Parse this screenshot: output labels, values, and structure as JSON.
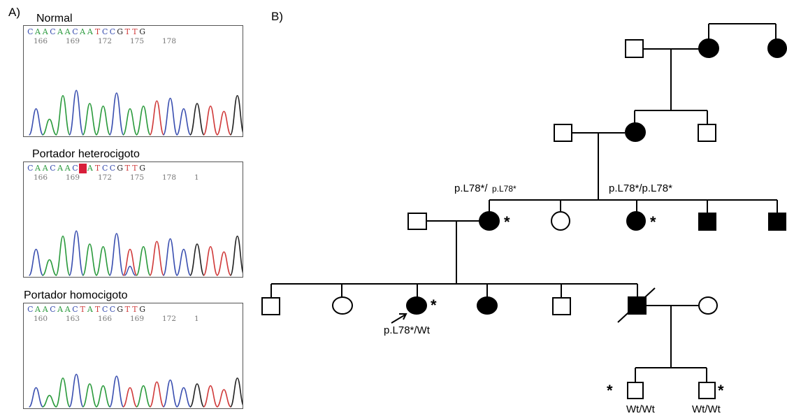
{
  "panel_a": {
    "label": "A)",
    "traces": [
      {
        "title": "Normal",
        "bases": [
          "C",
          "A",
          "A",
          "C",
          "A",
          "A",
          "C",
          "A",
          "A",
          "T",
          "C",
          "C",
          "G",
          "T",
          "T",
          "G"
        ],
        "numbers": [
          "166",
          "169",
          "172",
          "175",
          "178"
        ],
        "highlight_index": -1
      },
      {
        "title": "Portador heterocigoto",
        "bases": [
          "C",
          "A",
          "A",
          "C",
          "A",
          "A",
          "C",
          "",
          "A",
          "T",
          "C",
          "C",
          "G",
          "T",
          "T",
          "G"
        ],
        "numbers": [
          "166",
          "169",
          "172",
          "175",
          "178",
          "1"
        ],
        "highlight_index": 7
      },
      {
        "title": "Portador homocigoto",
        "bases": [
          "C",
          "A",
          "A",
          "C",
          "A",
          "A",
          "C",
          "T",
          "A",
          "T",
          "C",
          "C",
          "G",
          "T",
          "T",
          "G"
        ],
        "numbers": [
          "160",
          "163",
          "166",
          "169",
          "172",
          "1"
        ],
        "highlight_index": -1
      }
    ],
    "base_colors": {
      "A": "#2a9a3c",
      "C": "#3a4fb0",
      "G": "#222222",
      "T": "#d03a3a"
    },
    "highlight_color": "#d81e3a"
  },
  "panel_b": {
    "label": "B)",
    "annotations": {
      "gen3_left_genotype_a": "p.L78*/",
      "gen3_left_genotype_b": "p.L78*",
      "gen3_right_genotype": "p.L78*/p.L78*",
      "proband_genotype": "p.L78*/Wt",
      "gen5_left_genotype": "Wt/Wt",
      "gen5_right_genotype": "Wt/Wt",
      "carrier_mark": "*"
    }
  }
}
